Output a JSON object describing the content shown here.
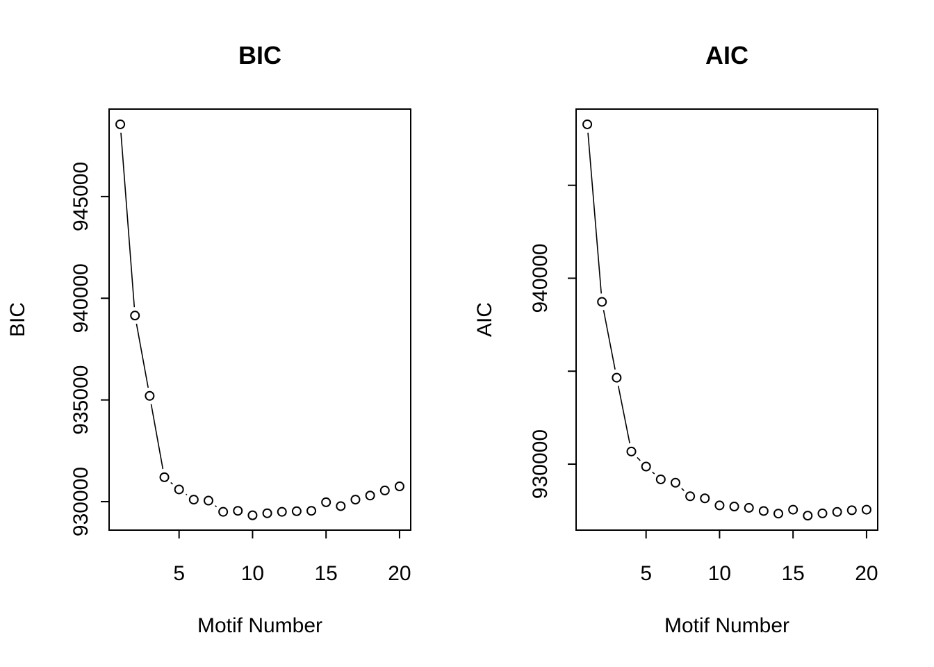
{
  "chart_data": [
    {
      "type": "line",
      "title": "BIC",
      "xlabel": "Motif Number",
      "ylabel": "BIC",
      "xlim": [
        0.24,
        20.76
      ],
      "ylim": [
        928600,
        949300
      ],
      "xticks": [
        5,
        10,
        15,
        20
      ],
      "yticks": [
        930000,
        935000,
        940000,
        945000
      ],
      "grid": false,
      "legend": "none",
      "x": [
        1,
        2,
        3,
        4,
        5,
        6,
        7,
        8,
        9,
        10,
        11,
        12,
        13,
        14,
        15,
        16,
        17,
        18,
        19,
        20
      ],
      "y": [
        948550,
        939150,
        935200,
        931200,
        930600,
        930100,
        930050,
        929500,
        929550,
        929330,
        929430,
        929500,
        929530,
        929550,
        929970,
        929780,
        930100,
        930300,
        930550,
        930750
      ]
    },
    {
      "type": "line",
      "title": "AIC",
      "xlabel": "Motif Number",
      "ylabel": "AIC",
      "xlim": [
        0.24,
        20.76
      ],
      "ylim": [
        926450,
        949100
      ],
      "xticks": [
        5,
        10,
        15,
        20
      ],
      "yticks": [
        930000,
        935000,
        940000,
        945000
      ],
      "ytick_labels": [
        "930000",
        "",
        "940000",
        ""
      ],
      "grid": false,
      "legend": "none",
      "x": [
        1,
        2,
        3,
        4,
        5,
        6,
        7,
        8,
        9,
        10,
        11,
        12,
        13,
        14,
        15,
        16,
        17,
        18,
        19,
        20
      ],
      "y": [
        948280,
        938730,
        934650,
        930680,
        929870,
        929180,
        929000,
        928270,
        928160,
        927780,
        927720,
        927650,
        927480,
        927340,
        927550,
        927230,
        927350,
        927430,
        927520,
        927550
      ]
    }
  ]
}
